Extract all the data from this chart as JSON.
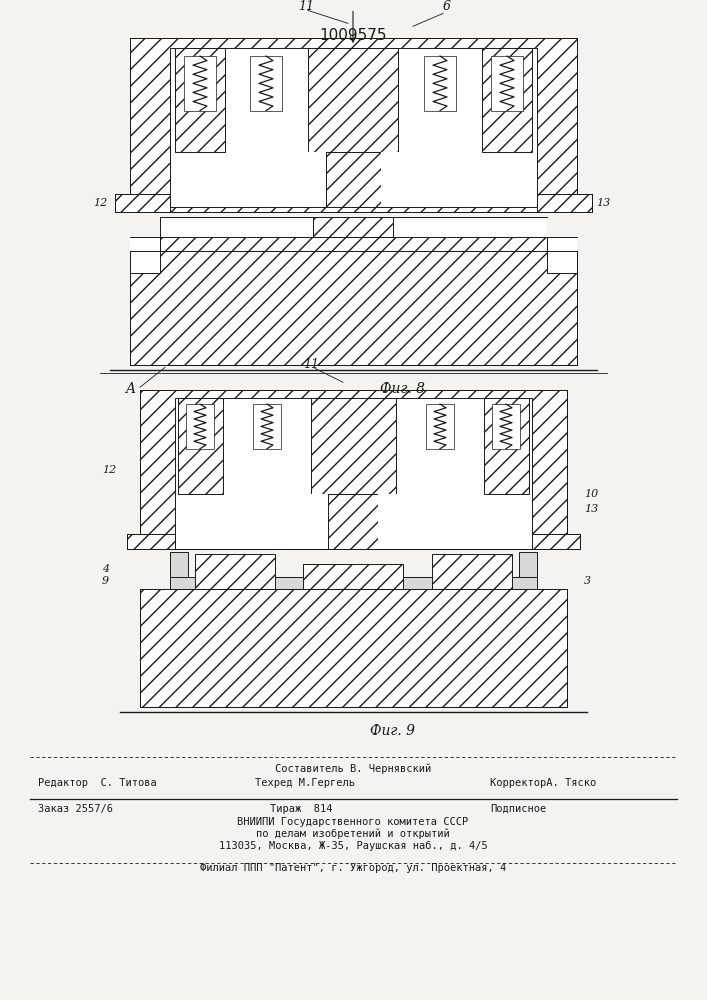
{
  "patent_number": "1009575",
  "bg_color": "#f5f3ef",
  "line_color": "#1a1a1a",
  "fig8_label": "Фиг. 8",
  "fig9_label": "Фиг. 9",
  "label_A": "A",
  "footer_line1_center": "Составитель В. Чернявский",
  "footer_line2_left": "Редактор  С. Титова",
  "footer_line2_mid": "Техред М.Гергель",
  "footer_line2_right": "КорректорА. Тяско",
  "footer_line3_left": "Заказ 2557/6",
  "footer_line3_mid": "Тираж  814",
  "footer_line3_right": "Подписное",
  "footer_line4": "ВНИИПИ Государственного комитета СССР",
  "footer_line5": "по делам изобретений и открытий",
  "footer_line6": "113035, Москва, Ж-35, Раушская наб., д. 4/5",
  "footer_line7": "Филиал ППП \"Патент\", г. Ужгород, ул. Проектная, 4"
}
